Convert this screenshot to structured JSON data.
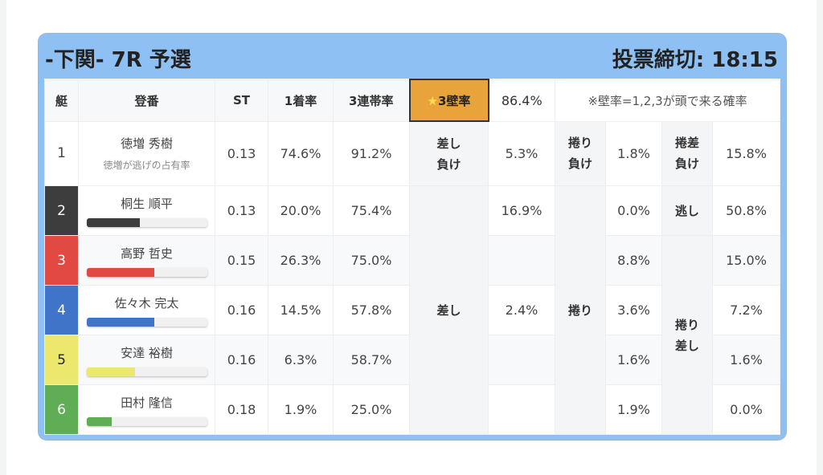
{
  "header": {
    "title": "-下関- 7R 予選",
    "deadline": "投票締切: 18:15"
  },
  "columns": {
    "boat": "艇",
    "reg": "登番",
    "st": "ST",
    "win": "1着率",
    "top3": "3連帯率",
    "kabe_label": "3壁率",
    "kabe_star": "★",
    "kabe_value": "86.4%",
    "note": "※壁率=1,2,3が頭で来る確率"
  },
  "row1": {
    "boat": "1",
    "name": "徳増 秀樹",
    "sub": "徳増が逃げの占有率",
    "st": "0.13",
    "win": "74.6%",
    "top3": "91.2%",
    "c1_label": "差し\n負け",
    "c1": "5.3%",
    "c2_label": "捲り\n負け",
    "c2": "1.8%",
    "c3_label": "捲差\n負け",
    "c3": "15.8%"
  },
  "labels": {
    "sashi": "差し",
    "makuri": "捲り",
    "nige": "逃し",
    "makurisashi": "捲り\n差し"
  },
  "racers": [
    {
      "boat": "2",
      "name": "桐生 順平",
      "st": "0.13",
      "win": "20.0%",
      "top3": "75.4%",
      "sashi": "16.9%",
      "makuri": "0.0%",
      "last": "50.8%",
      "bar": 0.44,
      "color": "#3d3d3d",
      "text": "#fff"
    },
    {
      "boat": "3",
      "name": "高野 哲史",
      "st": "0.15",
      "win": "26.3%",
      "top3": "75.0%",
      "sashi": "",
      "makuri": "8.8%",
      "last": "15.0%",
      "bar": 0.56,
      "color": "#e04a43",
      "text": "#fff"
    },
    {
      "boat": "4",
      "name": "佐々木 完太",
      "st": "0.16",
      "win": "14.5%",
      "top3": "57.8%",
      "sashi": "2.4%",
      "makuri": "3.6%",
      "last": "7.2%",
      "bar": 0.56,
      "color": "#3f74c8",
      "text": "#fff"
    },
    {
      "boat": "5",
      "name": "安達 裕樹",
      "st": "0.16",
      "win": "6.3%",
      "top3": "58.7%",
      "sashi": "",
      "makuri": "1.6%",
      "last": "1.6%",
      "bar": 0.4,
      "color": "#ece86e",
      "text": "#222"
    },
    {
      "boat": "6",
      "name": "田村 隆信",
      "st": "0.18",
      "win": "1.9%",
      "top3": "25.0%",
      "sashi": "",
      "makuri": "1.9%",
      "last": "0.0%",
      "bar": 0.21,
      "color": "#5fae55",
      "text": "#fff"
    }
  ]
}
